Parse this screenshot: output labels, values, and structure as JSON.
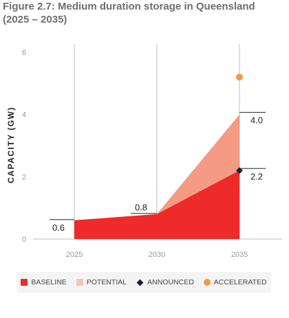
{
  "title_line1": "Figure 2.7: Medium duration storage in Queensland",
  "title_line2": "(2025 – 2035)",
  "chart_data": {
    "type": "area",
    "x": [
      "2025",
      "2030",
      "2035"
    ],
    "ylabel": "CAPACITY (GW)",
    "ylim": [
      0,
      6
    ],
    "yticks": [
      0,
      2,
      4,
      6
    ],
    "grid": true,
    "series": [
      {
        "name": "BASELINE",
        "color": "#ee2a2a",
        "values": [
          0.6,
          0.8,
          2.2
        ]
      },
      {
        "name": "POTENTIAL",
        "color": "#f59b83",
        "values": [
          0.6,
          0.8,
          4.0
        ]
      }
    ],
    "markers": [
      {
        "name": "ANNOUNCED",
        "shape": "diamond",
        "color": "#1b1f3b",
        "x": "2035",
        "y": 2.2
      },
      {
        "name": "ACCELERATED",
        "shape": "circle",
        "color": "#f59a3c",
        "x": "2035",
        "y": 5.2
      }
    ],
    "data_labels": [
      {
        "x": "2025",
        "y": 0.6,
        "text": "0.6"
      },
      {
        "x": "2030",
        "y": 0.8,
        "text": "0.8"
      },
      {
        "x": "2035",
        "y": 4.0,
        "text": "4.0"
      },
      {
        "x": "2035",
        "y": 2.2,
        "text": "2.2"
      }
    ],
    "legend": [
      {
        "label": "BASELINE",
        "swatch": "square",
        "color": "#ee2a2a"
      },
      {
        "label": "POTENTIAL",
        "swatch": "square",
        "color": "#f9c4b4"
      },
      {
        "label": "ANNOUNCED",
        "swatch": "diamond",
        "color": "#1b1f3b"
      },
      {
        "label": "ACCELERATED",
        "swatch": "circle",
        "color": "#f59a3c"
      }
    ],
    "legend_position": "bottom"
  }
}
